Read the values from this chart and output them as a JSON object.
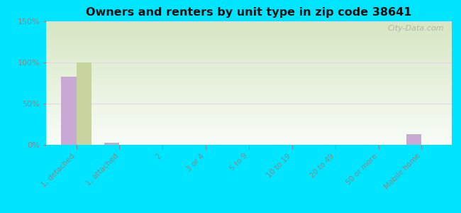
{
  "title": "Owners and renters by unit type in zip code 38641",
  "categories": [
    "1, detached",
    "1, attached",
    "2",
    "3 or 4",
    "5 to 9",
    "10 to 19",
    "20 to 49",
    "50 or more",
    "Mobile home"
  ],
  "owner_values": [
    83,
    3,
    0,
    0,
    0,
    0,
    0,
    0,
    13
  ],
  "renter_values": [
    100,
    0,
    0,
    0,
    0,
    0,
    0,
    0,
    0
  ],
  "owner_color": "#c9a8d4",
  "renter_color": "#c8d4a0",
  "background_outer": "#00e5ff",
  "ylim": [
    0,
    150
  ],
  "yticks": [
    0,
    50,
    100,
    150
  ],
  "ytick_labels": [
    "0%",
    "50%",
    "100%",
    "150%"
  ],
  "bar_width": 0.35,
  "watermark": "City-Data.com",
  "tick_color": "#888888",
  "grid_color": "#dddddd"
}
